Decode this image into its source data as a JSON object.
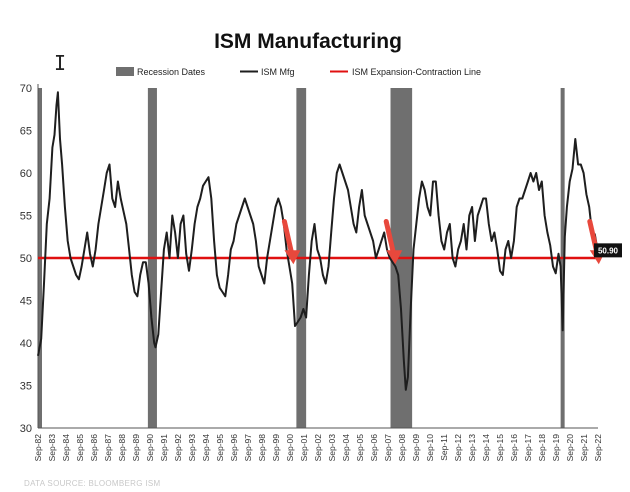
{
  "chart_data": {
    "type": "line",
    "title": "ISM Manufacturing",
    "legend": [
      {
        "label": "Recession Dates",
        "color": "#6f6f6f",
        "kind": "box"
      },
      {
        "label": "ISM Mfg",
        "color": "#1e1e1e",
        "kind": "line"
      },
      {
        "label": "ISM Expansion-Contraction Line",
        "color": "#e01010",
        "kind": "line"
      }
    ],
    "legend_position": "top-center",
    "grid": false,
    "ylim": [
      30,
      70
    ],
    "yticks": [
      "30",
      "35",
      "40",
      "45",
      "50",
      "55",
      "60",
      "65",
      "70"
    ],
    "xlim": [
      1982.67,
      2022.83
    ],
    "xtick_labels": [
      "Sep-82",
      "Sep-83",
      "Sep-84",
      "Sep-85",
      "Sep-86",
      "Sep-87",
      "Sep-88",
      "Sep-89",
      "Sep-90",
      "Sep-91",
      "Sep-92",
      "Sep-93",
      "Sep-94",
      "Sep-95",
      "Sep-96",
      "Sep-97",
      "Sep-98",
      "Sep-99",
      "Sep-00",
      "Sep-01",
      "Sep-02",
      "Sep-03",
      "Sep-04",
      "Sep-05",
      "Sep-06",
      "Sep-07",
      "Sep-08",
      "Sep-09",
      "Sep-10",
      "Sep-11",
      "Sep-12",
      "Sep-13",
      "Sep-14",
      "Sep-15",
      "Sep-16",
      "Sep-17",
      "Sep-18",
      "Sep-19",
      "Sep-20",
      "Sep-21",
      "Sep-22"
    ],
    "recessions": [
      [
        1982.67,
        1982.85
      ],
      [
        1990.55,
        1991.2
      ],
      [
        2001.2,
        2001.9
      ],
      [
        2007.95,
        2009.5
      ],
      [
        2020.15,
        2020.35
      ]
    ],
    "threshold": {
      "value": 50,
      "color": "#e01010"
    },
    "series": [
      {
        "name": "ISM Mfg",
        "color": "#1e1e1e",
        "points": [
          [
            1982.67,
            38.5
          ],
          [
            1982.9,
            40.5
          ],
          [
            1983.1,
            47
          ],
          [
            1983.3,
            54
          ],
          [
            1983.5,
            57
          ],
          [
            1983.7,
            63
          ],
          [
            1983.85,
            64.5
          ],
          [
            1984.0,
            68
          ],
          [
            1984.1,
            69.5
          ],
          [
            1984.25,
            64
          ],
          [
            1984.4,
            61
          ],
          [
            1984.6,
            56
          ],
          [
            1984.8,
            52
          ],
          [
            1985.0,
            50
          ],
          [
            1985.2,
            49
          ],
          [
            1985.4,
            48
          ],
          [
            1985.6,
            47.5
          ],
          [
            1985.8,
            49
          ],
          [
            1986.0,
            51
          ],
          [
            1986.2,
            53
          ],
          [
            1986.4,
            50.5
          ],
          [
            1986.6,
            49
          ],
          [
            1986.8,
            51
          ],
          [
            1987.0,
            54
          ],
          [
            1987.2,
            56
          ],
          [
            1987.4,
            58
          ],
          [
            1987.6,
            60
          ],
          [
            1987.8,
            61
          ],
          [
            1988.0,
            57
          ],
          [
            1988.2,
            56
          ],
          [
            1988.4,
            59
          ],
          [
            1988.6,
            57
          ],
          [
            1988.8,
            55.5
          ],
          [
            1989.0,
            54
          ],
          [
            1989.2,
            51
          ],
          [
            1989.4,
            48
          ],
          [
            1989.6,
            46
          ],
          [
            1989.8,
            45.5
          ],
          [
            1990.0,
            48
          ],
          [
            1990.2,
            49.5
          ],
          [
            1990.4,
            49.5
          ],
          [
            1990.6,
            47
          ],
          [
            1990.8,
            43
          ],
          [
            1991.0,
            40
          ],
          [
            1991.1,
            39.5
          ],
          [
            1991.3,
            41
          ],
          [
            1991.5,
            46
          ],
          [
            1991.7,
            51
          ],
          [
            1991.9,
            53
          ],
          [
            1992.1,
            50
          ],
          [
            1992.3,
            55
          ],
          [
            1992.5,
            53
          ],
          [
            1992.7,
            50
          ],
          [
            1992.9,
            54
          ],
          [
            1993.1,
            55
          ],
          [
            1993.3,
            50.5
          ],
          [
            1993.5,
            48.5
          ],
          [
            1993.7,
            51
          ],
          [
            1993.9,
            54
          ],
          [
            1994.1,
            56
          ],
          [
            1994.3,
            57
          ],
          [
            1994.5,
            58.5
          ],
          [
            1994.7,
            59
          ],
          [
            1994.9,
            59.5
          ],
          [
            1995.1,
            57
          ],
          [
            1995.3,
            52
          ],
          [
            1995.5,
            48
          ],
          [
            1995.7,
            46.5
          ],
          [
            1995.9,
            46
          ],
          [
            1996.1,
            45.5
          ],
          [
            1996.3,
            48
          ],
          [
            1996.5,
            51
          ],
          [
            1996.7,
            52
          ],
          [
            1996.9,
            54
          ],
          [
            1997.1,
            55
          ],
          [
            1997.3,
            56
          ],
          [
            1997.5,
            57
          ],
          [
            1997.7,
            56
          ],
          [
            1997.9,
            55
          ],
          [
            1998.1,
            54
          ],
          [
            1998.3,
            52
          ],
          [
            1998.5,
            49
          ],
          [
            1998.7,
            48
          ],
          [
            1998.9,
            47
          ],
          [
            1999.1,
            50
          ],
          [
            1999.3,
            52
          ],
          [
            1999.5,
            54
          ],
          [
            1999.7,
            56
          ],
          [
            1999.9,
            57
          ],
          [
            2000.1,
            56
          ],
          [
            2000.3,
            54
          ],
          [
            2000.5,
            51
          ],
          [
            2000.7,
            49
          ],
          [
            2000.9,
            47
          ],
          [
            2001.1,
            42
          ],
          [
            2001.3,
            42.5
          ],
          [
            2001.5,
            43
          ],
          [
            2001.7,
            44
          ],
          [
            2001.9,
            43
          ],
          [
            2002.1,
            48
          ],
          [
            2002.3,
            52
          ],
          [
            2002.5,
            54
          ],
          [
            2002.7,
            51
          ],
          [
            2002.9,
            50
          ],
          [
            2003.1,
            48
          ],
          [
            2003.3,
            47
          ],
          [
            2003.5,
            49
          ],
          [
            2003.7,
            53
          ],
          [
            2003.9,
            57
          ],
          [
            2004.1,
            60
          ],
          [
            2004.3,
            61
          ],
          [
            2004.5,
            60
          ],
          [
            2004.7,
            59
          ],
          [
            2004.9,
            58
          ],
          [
            2005.1,
            56
          ],
          [
            2005.3,
            54
          ],
          [
            2005.5,
            53
          ],
          [
            2005.7,
            56
          ],
          [
            2005.9,
            58
          ],
          [
            2006.1,
            55
          ],
          [
            2006.3,
            54
          ],
          [
            2006.5,
            53
          ],
          [
            2006.7,
            52
          ],
          [
            2006.9,
            50
          ],
          [
            2007.1,
            51
          ],
          [
            2007.3,
            52
          ],
          [
            2007.5,
            53
          ],
          [
            2007.7,
            51
          ],
          [
            2007.9,
            50
          ],
          [
            2008.1,
            49.5
          ],
          [
            2008.3,
            49
          ],
          [
            2008.5,
            48
          ],
          [
            2008.7,
            44
          ],
          [
            2008.9,
            38
          ],
          [
            2009.05,
            34.5
          ],
          [
            2009.2,
            36
          ],
          [
            2009.4,
            44
          ],
          [
            2009.6,
            51
          ],
          [
            2009.8,
            54
          ],
          [
            2010.0,
            57
          ],
          [
            2010.2,
            59
          ],
          [
            2010.4,
            58
          ],
          [
            2010.6,
            56
          ],
          [
            2010.8,
            55
          ],
          [
            2011.0,
            59
          ],
          [
            2011.2,
            59
          ],
          [
            2011.4,
            55
          ],
          [
            2011.6,
            52
          ],
          [
            2011.8,
            51
          ],
          [
            2012.0,
            53
          ],
          [
            2012.2,
            54
          ],
          [
            2012.4,
            50
          ],
          [
            2012.6,
            49
          ],
          [
            2012.8,
            51
          ],
          [
            2013.0,
            52
          ],
          [
            2013.2,
            54
          ],
          [
            2013.4,
            51
          ],
          [
            2013.6,
            55
          ],
          [
            2013.8,
            56
          ],
          [
            2014.0,
            52
          ],
          [
            2014.2,
            55
          ],
          [
            2014.4,
            56
          ],
          [
            2014.6,
            57
          ],
          [
            2014.8,
            57
          ],
          [
            2015.0,
            54
          ],
          [
            2015.2,
            52
          ],
          [
            2015.4,
            53
          ],
          [
            2015.6,
            51
          ],
          [
            2015.8,
            48.5
          ],
          [
            2016.0,
            48
          ],
          [
            2016.2,
            51
          ],
          [
            2016.4,
            52
          ],
          [
            2016.6,
            50
          ],
          [
            2016.8,
            52
          ],
          [
            2017.0,
            56
          ],
          [
            2017.2,
            57
          ],
          [
            2017.4,
            57
          ],
          [
            2017.6,
            58
          ],
          [
            2017.8,
            59
          ],
          [
            2018.0,
            60
          ],
          [
            2018.2,
            59
          ],
          [
            2018.4,
            60
          ],
          [
            2018.6,
            58
          ],
          [
            2018.8,
            59
          ],
          [
            2019.0,
            55
          ],
          [
            2019.2,
            53
          ],
          [
            2019.4,
            51.5
          ],
          [
            2019.6,
            49
          ],
          [
            2019.8,
            48.2
          ],
          [
            2020.0,
            50.5
          ],
          [
            2020.15,
            49
          ],
          [
            2020.3,
            41.5
          ],
          [
            2020.45,
            52.5
          ],
          [
            2020.6,
            56
          ],
          [
            2020.8,
            59
          ],
          [
            2021.0,
            60.5
          ],
          [
            2021.2,
            64
          ],
          [
            2021.4,
            61
          ],
          [
            2021.6,
            61
          ],
          [
            2021.8,
            60
          ],
          [
            2022.0,
            57.5
          ],
          [
            2022.2,
            56
          ],
          [
            2022.4,
            53
          ],
          [
            2022.6,
            52.8
          ],
          [
            2022.8,
            50.9
          ]
        ]
      }
    ],
    "last_value_label": "50.90",
    "source_text": "DATA SOURCE: BLOOMBERG ISM",
    "annotations": [
      {
        "kind": "down-arrow",
        "x": 2000.7,
        "y_from": 54.3,
        "y_to": 49.5,
        "color": "#e8483c"
      },
      {
        "kind": "down-arrow",
        "x": 2008.0,
        "y_from": 54.3,
        "y_to": 49.5,
        "color": "#e8483c"
      },
      {
        "kind": "down-arrow",
        "x": 2022.6,
        "y_from": 54.3,
        "y_to": 49.5,
        "color": "#e8483c"
      }
    ],
    "line_colors": {
      "axis": "#555555"
    }
  }
}
